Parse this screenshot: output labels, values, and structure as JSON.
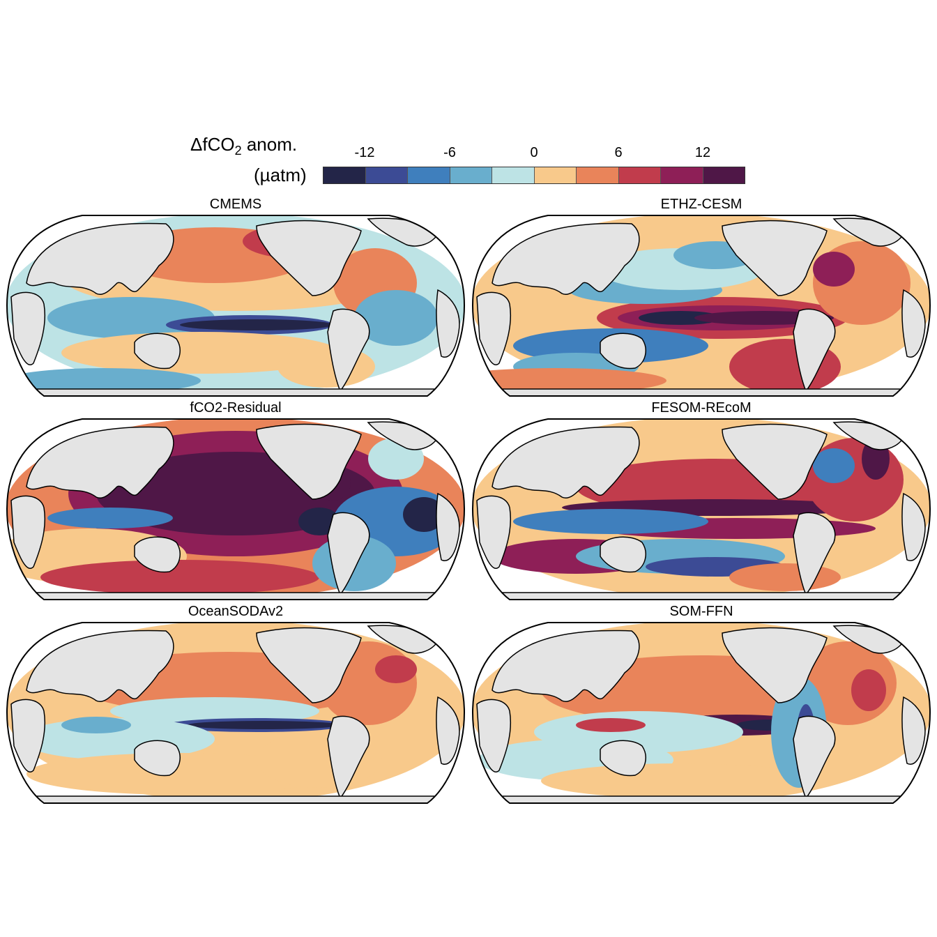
{
  "legend": {
    "title_main": "ΔfCO",
    "title_sub": "2",
    "title_rest": " anom.",
    "units": "(µatm)",
    "ticks": [
      "-12",
      "-6",
      "0",
      "6",
      "12"
    ],
    "colors": [
      "#232548",
      "#3c4b95",
      "#3f7fbd",
      "#69aecd",
      "#bde3e5",
      "#f8c98b",
      "#e9845a",
      "#c13c4c",
      "#8e1f57",
      "#4f1747"
    ]
  },
  "panels": [
    {
      "title": "CMEMS",
      "pattern": "mixed-warm-north"
    },
    {
      "title": "ETHZ-CESM",
      "pattern": "strong-warm-eq"
    },
    {
      "title": "fCO2-Residual",
      "pattern": "very-warm"
    },
    {
      "title": "FESOM-REcoM",
      "pattern": "banded-strong"
    },
    {
      "title": "OceanSODAv2",
      "pattern": "mild-warm"
    },
    {
      "title": "SOM-FFN",
      "pattern": "warm-eq-tongue"
    }
  ],
  "colors": {
    "land": "#e4e4e4",
    "coast": "#000000"
  }
}
